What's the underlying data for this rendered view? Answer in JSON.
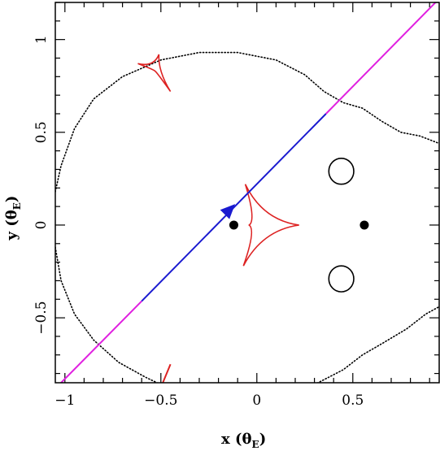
{
  "chart_data": {
    "type": "line",
    "xlabel": "x (θ",
    "xlabel_sub": "E",
    "xlabel_close": ")",
    "ylabel": "y (θ",
    "ylabel_sub": "E",
    "ylabel_close": ")",
    "xlim": [
      -1.05,
      0.95
    ],
    "ylim": [
      -0.85,
      1.2
    ],
    "x_ticks": [
      {
        "value": -1,
        "label": "−1"
      },
      {
        "value": -0.5,
        "label": "−0.5"
      },
      {
        "value": 0,
        "label": "0"
      },
      {
        "value": 0.5,
        "label": "0.5"
      }
    ],
    "y_ticks": [
      {
        "value": -0.5,
        "label": "−0.5"
      },
      {
        "value": 0,
        "label": "0"
      },
      {
        "value": 0.5,
        "label": "0.5"
      },
      {
        "value": 1,
        "label": "1"
      }
    ],
    "minor_step": 0.1,
    "colors": {
      "caustic": "#dd2222",
      "critical_curve": "#000000",
      "trajectory_magenta": "#e020e0",
      "trajectory_blue": "#1a1ad0",
      "lens": "#000000"
    },
    "lenses": [
      {
        "x": -0.12,
        "y": 0.0
      },
      {
        "x": 0.56,
        "y": 0.0
      }
    ],
    "trajectory": {
      "segments": [
        {
          "color": "magenta",
          "points": [
            [
              -1.02,
              -0.85
            ],
            [
              -0.6,
              -0.41
            ]
          ]
        },
        {
          "color": "blue",
          "points": [
            [
              -0.6,
              -0.41
            ],
            [
              0.36,
              0.6
            ]
          ]
        },
        {
          "color": "magenta",
          "points": [
            [
              0.36,
              0.6
            ],
            [
              0.95,
              1.22
            ]
          ]
        }
      ],
      "arrow_at": [
        -0.14,
        0.085
      ],
      "arrow_direction": [
        1.0,
        1.05
      ]
    },
    "critical_curves": {
      "outer_upper": [
        [
          -1.05,
          0.18
        ],
        [
          -1.02,
          0.32
        ],
        [
          -0.95,
          0.52
        ],
        [
          -0.85,
          0.68
        ],
        [
          -0.7,
          0.8
        ],
        [
          -0.5,
          0.89
        ],
        [
          -0.3,
          0.93
        ],
        [
          -0.1,
          0.93
        ],
        [
          0.1,
          0.89
        ],
        [
          0.25,
          0.81
        ],
        [
          0.35,
          0.72
        ],
        [
          0.45,
          0.66
        ],
        [
          0.55,
          0.63
        ],
        [
          0.65,
          0.56
        ],
        [
          0.75,
          0.5
        ],
        [
          0.85,
          0.48
        ],
        [
          0.95,
          0.44
        ]
      ],
      "outer_lower": [
        [
          -1.05,
          -0.12
        ],
        [
          -1.02,
          -0.3
        ],
        [
          -0.95,
          -0.48
        ],
        [
          -0.85,
          -0.62
        ],
        [
          -0.72,
          -0.74
        ],
        [
          -0.58,
          -0.82
        ],
        [
          -0.5,
          -0.86
        ]
      ],
      "outer_right_lower": [
        [
          0.3,
          -0.86
        ],
        [
          0.45,
          -0.78
        ],
        [
          0.55,
          -0.7
        ],
        [
          0.65,
          -0.64
        ],
        [
          0.78,
          -0.56
        ],
        [
          0.88,
          -0.48
        ],
        [
          0.95,
          -0.44
        ]
      ],
      "small_loops": [
        {
          "cx": 0.44,
          "cy": 0.29,
          "rx": 0.065,
          "ry": 0.07
        },
        {
          "cx": 0.44,
          "cy": -0.29,
          "rx": 0.065,
          "ry": 0.07
        }
      ]
    },
    "caustics": {
      "central": [
        [
          -0.06,
          0.22
        ],
        [
          0.22,
          0.0
        ],
        [
          -0.07,
          -0.22
        ],
        [
          -0.04,
          0.0
        ]
      ],
      "upper_small": [
        [
          -0.62,
          0.87
        ],
        [
          -0.51,
          0.92
        ],
        [
          -0.45,
          0.72
        ],
        [
          -0.53,
          0.83
        ]
      ],
      "lower_partial": [
        [
          -0.49,
          -0.85
        ],
        [
          -0.45,
          -0.75
        ]
      ]
    }
  }
}
